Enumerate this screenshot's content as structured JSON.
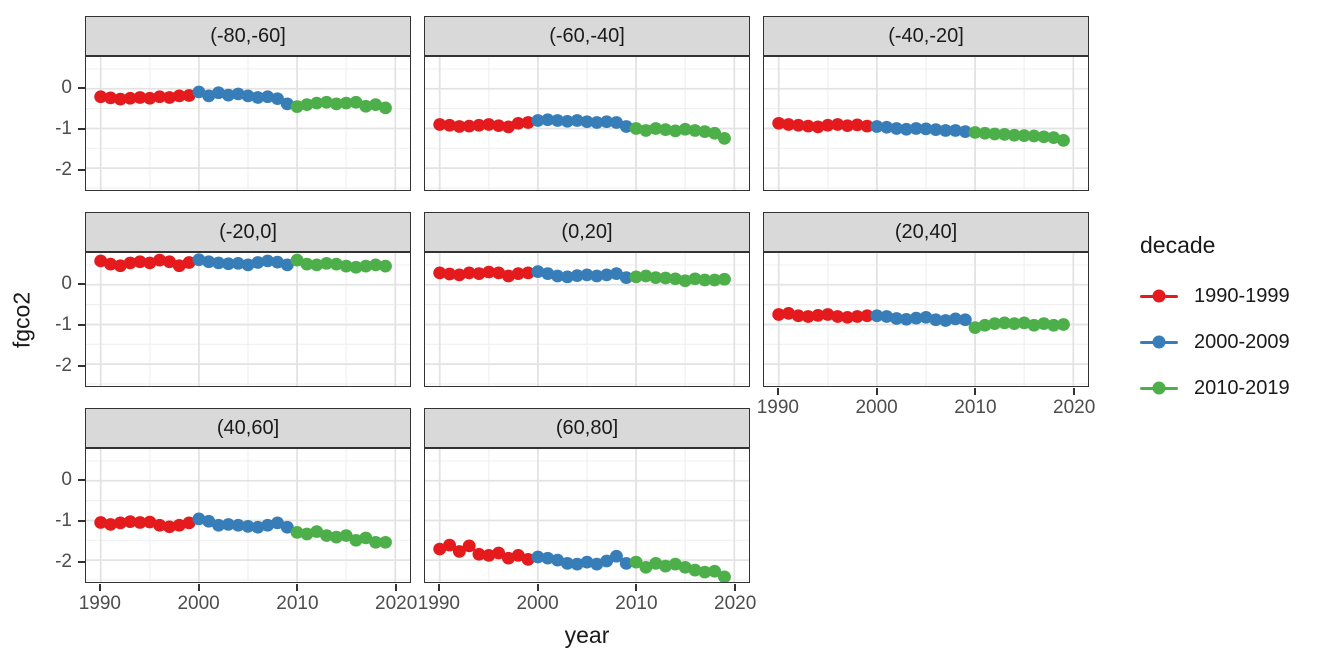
{
  "chart_data": {
    "type": "scatter",
    "title": "",
    "xlabel": "year",
    "ylabel": "fgco2",
    "facet_variable": "latitude band",
    "xlim": [
      1988.5,
      2021.5
    ],
    "ylim": [
      -2.55,
      0.8
    ],
    "x_ticks": [
      1990,
      2000,
      2010,
      2020
    ],
    "y_ticks": [
      0,
      -1,
      -2
    ],
    "x_minor_ticks": [
      1995,
      2005,
      2015
    ],
    "y_minor_ticks": [
      0.5,
      -0.5,
      -1.5,
      -2.5
    ],
    "grid": true,
    "legend": {
      "title": "decade",
      "position": "right",
      "entries": [
        {
          "label": "1990-1999",
          "color": "#E41A1C"
        },
        {
          "label": "2000-2009",
          "color": "#377EB8"
        },
        {
          "label": "2010-2019",
          "color": "#4DAF4A"
        }
      ]
    },
    "series_meta": [
      {
        "name": "1990-1999",
        "color": "#E41A1C",
        "start_year": 1990
      },
      {
        "name": "2000-2009",
        "color": "#377EB8",
        "start_year": 2000
      },
      {
        "name": "2010-2019",
        "color": "#4DAF4A",
        "start_year": 2010
      }
    ],
    "facets": [
      {
        "label": "(-80,-60]",
        "row": 0,
        "col": 0,
        "y_axis": true,
        "x_axis": false,
        "series": {
          "1990-1999": [
            -0.2,
            -0.23,
            -0.26,
            -0.24,
            -0.22,
            -0.24,
            -0.2,
            -0.22,
            -0.18,
            -0.17
          ],
          "2000-2009": [
            -0.08,
            -0.18,
            -0.1,
            -0.16,
            -0.13,
            -0.18,
            -0.22,
            -0.2,
            -0.25,
            -0.38
          ],
          "2010-2019": [
            -0.45,
            -0.4,
            -0.36,
            -0.34,
            -0.38,
            -0.36,
            -0.34,
            -0.44,
            -0.4,
            -0.48
          ]
        }
      },
      {
        "label": "(-60,-40]",
        "row": 0,
        "col": 1,
        "y_axis": false,
        "x_axis": false,
        "series": {
          "1990-1999": [
            -0.9,
            -0.92,
            -0.95,
            -0.94,
            -0.92,
            -0.9,
            -0.93,
            -0.96,
            -0.87,
            -0.85
          ],
          "2000-2009": [
            -0.8,
            -0.78,
            -0.8,
            -0.82,
            -0.8,
            -0.83,
            -0.85,
            -0.83,
            -0.85,
            -0.95
          ],
          "2010-2019": [
            -1.0,
            -1.05,
            -1.0,
            -1.03,
            -1.06,
            -1.02,
            -1.05,
            -1.08,
            -1.12,
            -1.25
          ]
        }
      },
      {
        "label": "(-40,-20]",
        "row": 0,
        "col": 2,
        "y_axis": false,
        "x_axis": false,
        "series": {
          "1990-1999": [
            -0.87,
            -0.9,
            -0.92,
            -0.94,
            -0.96,
            -0.92,
            -0.9,
            -0.93,
            -0.91,
            -0.94
          ],
          "2000-2009": [
            -0.95,
            -0.97,
            -1.0,
            -1.02,
            -1.0,
            -1.01,
            -1.03,
            -1.05,
            -1.05,
            -1.08
          ],
          "2010-2019": [
            -1.1,
            -1.12,
            -1.14,
            -1.15,
            -1.17,
            -1.18,
            -1.19,
            -1.21,
            -1.23,
            -1.3
          ]
        }
      },
      {
        "label": "(-20,0]",
        "row": 1,
        "col": 0,
        "y_axis": true,
        "x_axis": false,
        "series": {
          "1990-1999": [
            0.6,
            0.52,
            0.48,
            0.55,
            0.58,
            0.55,
            0.62,
            0.58,
            0.48,
            0.56
          ],
          "2000-2009": [
            0.63,
            0.58,
            0.55,
            0.53,
            0.54,
            0.5,
            0.56,
            0.6,
            0.57,
            0.5
          ],
          "2010-2019": [
            0.62,
            0.52,
            0.5,
            0.54,
            0.52,
            0.47,
            0.44,
            0.47,
            0.5,
            0.47
          ]
        }
      },
      {
        "label": "(0,20]",
        "row": 1,
        "col": 1,
        "y_axis": false,
        "x_axis": false,
        "series": {
          "1990-1999": [
            0.3,
            0.27,
            0.25,
            0.3,
            0.28,
            0.32,
            0.3,
            0.22,
            0.28,
            0.3
          ],
          "2000-2009": [
            0.33,
            0.28,
            0.22,
            0.2,
            0.23,
            0.25,
            0.22,
            0.25,
            0.28,
            0.18
          ],
          "2010-2019": [
            0.2,
            0.22,
            0.18,
            0.17,
            0.15,
            0.1,
            0.15,
            0.12,
            0.12,
            0.14
          ]
        }
      },
      {
        "label": "(20,40]",
        "row": 1,
        "col": 2,
        "y_axis": false,
        "x_axis": true,
        "series": {
          "1990-1999": [
            -0.75,
            -0.72,
            -0.78,
            -0.8,
            -0.77,
            -0.75,
            -0.8,
            -0.82,
            -0.8,
            -0.78
          ],
          "2000-2009": [
            -0.78,
            -0.8,
            -0.85,
            -0.87,
            -0.84,
            -0.82,
            -0.88,
            -0.9,
            -0.86,
            -0.88
          ],
          "2010-2019": [
            -1.08,
            -1.02,
            -0.98,
            -0.96,
            -0.98,
            -0.96,
            -1.02,
            -0.98,
            -1.02,
            -1.0
          ]
        }
      },
      {
        "label": "(40,60]",
        "row": 2,
        "col": 0,
        "y_axis": true,
        "x_axis": true,
        "series": {
          "1990-1999": [
            -1.05,
            -1.1,
            -1.06,
            -1.03,
            -1.05,
            -1.04,
            -1.12,
            -1.16,
            -1.12,
            -1.06
          ],
          "2000-2009": [
            -0.96,
            -1.02,
            -1.12,
            -1.1,
            -1.12,
            -1.15,
            -1.17,
            -1.12,
            -1.06,
            -1.17
          ],
          "2010-2019": [
            -1.3,
            -1.34,
            -1.28,
            -1.38,
            -1.42,
            -1.38,
            -1.5,
            -1.44,
            -1.55,
            -1.55
          ]
        }
      },
      {
        "label": "(60,80]",
        "row": 2,
        "col": 1,
        "y_axis": false,
        "x_axis": true,
        "series": {
          "1990-1999": [
            -1.72,
            -1.62,
            -1.78,
            -1.64,
            -1.85,
            -1.88,
            -1.82,
            -1.95,
            -1.88,
            -1.98
          ],
          "2000-2009": [
            -1.92,
            -1.95,
            -2.0,
            -2.08,
            -2.1,
            -2.05,
            -2.1,
            -2.02,
            -1.9,
            -2.08
          ],
          "2010-2019": [
            -2.05,
            -2.18,
            -2.08,
            -2.15,
            -2.1,
            -2.18,
            -2.25,
            -2.3,
            -2.28,
            -2.42
          ]
        }
      }
    ],
    "style": {
      "strip_fill": "#d9d9d9",
      "panel_border": "#333333",
      "grid_major": "#e3e3e3",
      "grid_minor": "#f0f0f0",
      "tick_label_color": "#4d4d4d",
      "point_radius": 6.5
    }
  }
}
